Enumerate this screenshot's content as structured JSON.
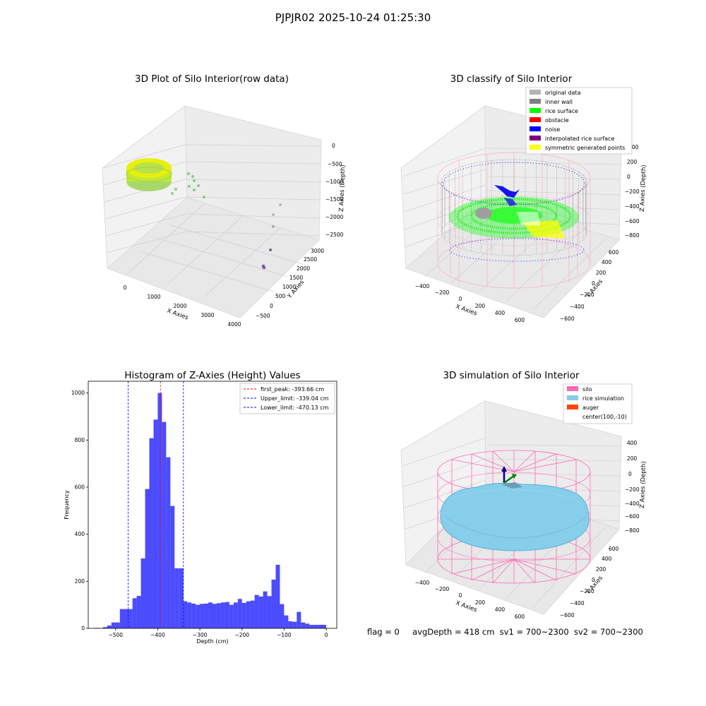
{
  "figure": {
    "suptitle": "PJPJR02 2025-10-24 01:25:30",
    "status": {
      "flag": "flag = 0",
      "avg_depth": "avgDepth = 418 cm",
      "sv1": "sv1 = 700~2300",
      "sv2": "sv2 = 700~2300"
    }
  },
  "chart_data": [
    {
      "type": "scatter",
      "title": "3D Plot of Silo Interior(row data)",
      "xlabel": "X Axies",
      "ylabel": "Y Axies",
      "zlabel": "Z Axies (Depth)",
      "x_ticks": [
        "0",
        "1000",
        "2000",
        "3000",
        "4000"
      ],
      "y_ticks": [
        "−500",
        "0",
        "500",
        "1000",
        "1500",
        "2000",
        "2500",
        "3000"
      ],
      "z_ticks": [
        "0",
        "−500",
        "−1000",
        "−1500",
        "−2000",
        "−2500"
      ],
      "grid": true,
      "colors": {
        "points_low": "#a6d96a",
        "points_high": "#e8f00a",
        "outliers_far": "#5b3a8c"
      }
    },
    {
      "type": "scatter",
      "title": "3D classify of Silo Interior",
      "xlabel": "X Axies",
      "ylabel": "Y Axies",
      "zlabel": "Z Axies (Depth)",
      "x_ticks": [
        "−400",
        "−200",
        "0",
        "200",
        "400",
        "600"
      ],
      "y_ticks": [
        "−600",
        "−400",
        "−200",
        "0",
        "200",
        "400",
        "600"
      ],
      "z_ticks": [
        "200",
        "0",
        "−200",
        "−400",
        "−600",
        "−800"
      ],
      "z_partial_top": "00",
      "grid": true,
      "legend_position": "top-right",
      "legend": [
        {
          "label": "original data",
          "color": "#b3b3b3"
        },
        {
          "label": "inner wall",
          "color": "#808080"
        },
        {
          "label": "rice surface",
          "color": "#00ff00"
        },
        {
          "label": "obstacle",
          "color": "#ff0000"
        },
        {
          "label": "noise",
          "color": "#0000ff"
        },
        {
          "label": "interpolated rice surface",
          "color": "#800080"
        },
        {
          "label": "symmetric generated points",
          "color": "#ffff00"
        }
      ]
    },
    {
      "type": "bar",
      "title": "Histogram of Z-Axies (Height) Values",
      "xlabel": "Depth (cm)",
      "ylabel": "Frequency",
      "xlim": [
        -565,
        25
      ],
      "ylim": [
        0,
        1050
      ],
      "x_ticks": [
        -500,
        -400,
        -300,
        -200,
        -100,
        0
      ],
      "x_tick_labels": [
        "−500",
        "−400",
        "−300",
        "−200",
        "−100",
        "0"
      ],
      "y_ticks": [
        0,
        200,
        400,
        600,
        800,
        1000
      ],
      "y_tick_labels": [
        "0",
        "200",
        "400",
        "600",
        "800",
        "1000"
      ],
      "bar_color": "#0000ff",
      "bins": [
        {
          "x0": -550,
          "x1": -540,
          "v": 2
        },
        {
          "x0": -540,
          "x1": -530,
          "v": 0
        },
        {
          "x0": -530,
          "x1": -520,
          "v": 5
        },
        {
          "x0": -520,
          "x1": -510,
          "v": 12
        },
        {
          "x0": -510,
          "x1": -500,
          "v": 25
        },
        {
          "x0": -500,
          "x1": -490,
          "v": 25
        },
        {
          "x0": -490,
          "x1": -470,
          "v": 82
        },
        {
          "x0": -470,
          "x1": -460,
          "v": 82
        },
        {
          "x0": -460,
          "x1": -450,
          "v": 128
        },
        {
          "x0": -450,
          "x1": -440,
          "v": 138
        },
        {
          "x0": -440,
          "x1": -430,
          "v": 297
        },
        {
          "x0": -430,
          "x1": -420,
          "v": 592
        },
        {
          "x0": -420,
          "x1": -410,
          "v": 808
        },
        {
          "x0": -410,
          "x1": -400,
          "v": 887
        },
        {
          "x0": -400,
          "x1": -390,
          "v": 1000
        },
        {
          "x0": -390,
          "x1": -380,
          "v": 877
        },
        {
          "x0": -380,
          "x1": -370,
          "v": 727
        },
        {
          "x0": -370,
          "x1": -360,
          "v": 520
        },
        {
          "x0": -360,
          "x1": -350,
          "v": 255
        },
        {
          "x0": -350,
          "x1": -339,
          "v": 255
        },
        {
          "x0": -339,
          "x1": -330,
          "v": 115
        },
        {
          "x0": -330,
          "x1": -320,
          "v": 110
        },
        {
          "x0": -320,
          "x1": -310,
          "v": 105
        },
        {
          "x0": -310,
          "x1": -300,
          "v": 100
        },
        {
          "x0": -300,
          "x1": -290,
          "v": 104
        },
        {
          "x0": -290,
          "x1": -280,
          "v": 105
        },
        {
          "x0": -280,
          "x1": -270,
          "v": 110
        },
        {
          "x0": -270,
          "x1": -260,
          "v": 104
        },
        {
          "x0": -260,
          "x1": -250,
          "v": 107
        },
        {
          "x0": -250,
          "x1": -240,
          "v": 110
        },
        {
          "x0": -240,
          "x1": -230,
          "v": 112
        },
        {
          "x0": -230,
          "x1": -220,
          "v": 100
        },
        {
          "x0": -220,
          "x1": -210,
          "v": 110
        },
        {
          "x0": -210,
          "x1": -200,
          "v": 125
        },
        {
          "x0": -200,
          "x1": -190,
          "v": 108
        },
        {
          "x0": -190,
          "x1": -180,
          "v": 115
        },
        {
          "x0": -180,
          "x1": -170,
          "v": 118
        },
        {
          "x0": -170,
          "x1": -160,
          "v": 142
        },
        {
          "x0": -160,
          "x1": -150,
          "v": 135
        },
        {
          "x0": -150,
          "x1": -140,
          "v": 157
        },
        {
          "x0": -140,
          "x1": -130,
          "v": 137
        },
        {
          "x0": -130,
          "x1": -120,
          "v": 207
        },
        {
          "x0": -120,
          "x1": -110,
          "v": 270
        },
        {
          "x0": -110,
          "x1": -100,
          "v": 103
        },
        {
          "x0": -100,
          "x1": -90,
          "v": 55
        },
        {
          "x0": -90,
          "x1": -80,
          "v": 30
        },
        {
          "x0": -80,
          "x1": -70,
          "v": 28
        },
        {
          "x0": -70,
          "x1": -60,
          "v": 70
        },
        {
          "x0": -60,
          "x1": -50,
          "v": 25
        },
        {
          "x0": -50,
          "x1": -40,
          "v": 20
        },
        {
          "x0": -40,
          "x1": -30,
          "v": 15
        },
        {
          "x0": -30,
          "x1": -20,
          "v": 15
        },
        {
          "x0": -20,
          "x1": 0,
          "v": 15
        }
      ],
      "vlines": [
        {
          "x": -393.66,
          "color": "#ff0000",
          "label": "first_peak: -393.66 cm"
        },
        {
          "x": -339.04,
          "color": "#0000ff",
          "label": "Upper_limit: -339.04 cm"
        },
        {
          "x": -470.13,
          "color": "#0000ff",
          "label": "Lower_limit: -470.13 cm"
        }
      ],
      "legend_position": "top-right",
      "grid": false
    },
    {
      "type": "scatter",
      "title": "3D simulation of Silo Interior",
      "xlabel": "X Axies",
      "ylabel": "Y Axies",
      "zlabel": "Z Axies (Depth)",
      "x_ticks": [
        "−400",
        "−200",
        "0",
        "200",
        "400",
        "600"
      ],
      "y_ticks": [
        "−600",
        "−400",
        "−200",
        "0",
        "200",
        "400",
        "600"
      ],
      "z_ticks": [
        "400",
        "200",
        "0",
        "−200",
        "−400",
        "−600",
        "−800"
      ],
      "grid": true,
      "legend_position": "top-right",
      "legend": [
        {
          "label": "silo",
          "color": "#ff69b4"
        },
        {
          "label": "rice simulation",
          "color": "#87ceeb"
        },
        {
          "label": "auger",
          "color": "#ff4500"
        },
        {
          "label": "center(100,-10)",
          "color": ""
        }
      ]
    }
  ]
}
